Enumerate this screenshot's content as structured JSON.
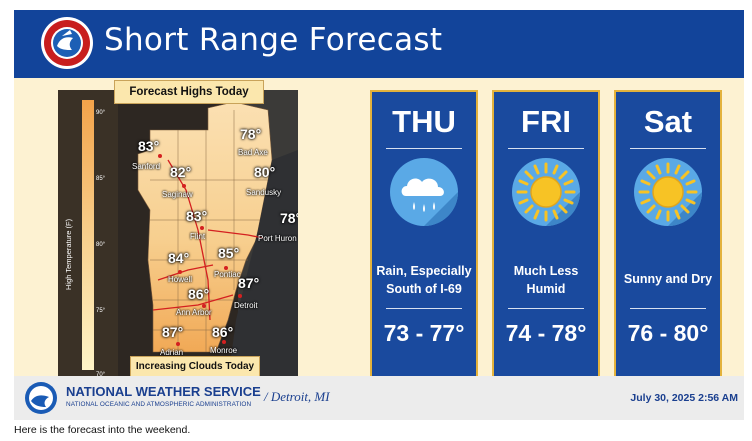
{
  "header": {
    "title": "Short Range Forecast"
  },
  "map": {
    "title": "Forecast Highs Today",
    "footer_note": "Increasing Clouds Today",
    "axis_label": "High Temperature (F)",
    "colorbar_ticks": [
      "90°",
      "85°",
      "80°",
      "75°",
      "70°"
    ],
    "locations": [
      {
        "name": "Sanford",
        "temp": "83°"
      },
      {
        "name": "Saginaw",
        "temp": "82°"
      },
      {
        "name": "Bad Axe",
        "temp": "78°"
      },
      {
        "name": "Sandusky",
        "temp": "80°"
      },
      {
        "name": "Flint",
        "temp": "83°"
      },
      {
        "name": "Port Huron",
        "temp": "78°"
      },
      {
        "name": "Howell",
        "temp": "84°"
      },
      {
        "name": "Pontiac",
        "temp": "85°"
      },
      {
        "name": "Detroit",
        "temp": "87°"
      },
      {
        "name": "Ann Arbor",
        "temp": "86°"
      },
      {
        "name": "Adrian",
        "temp": "87°"
      },
      {
        "name": "Monroe",
        "temp": "86°"
      }
    ],
    "highways": [
      "75",
      "69",
      "94",
      "96",
      "94"
    ]
  },
  "cards": [
    {
      "day": "THU",
      "icon": "rain-cloud-icon",
      "desc": [
        "Rain, Especially",
        "South of I-69"
      ],
      "temp": "73 - 77°"
    },
    {
      "day": "FRI",
      "icon": "sun-icon",
      "desc": [
        "Much Less",
        "Humid"
      ],
      "temp": "74 - 78°"
    },
    {
      "day": "Sat",
      "icon": "sun-icon",
      "desc": [
        "Sunny and Dry"
      ],
      "temp": "76 - 80°"
    }
  ],
  "footer": {
    "agency": "NATIONAL WEATHER SERVICE",
    "parent": "NATIONAL OCEANIC AND ATMOSPHERIC ADMINISTRATION",
    "office": "/ Detroit, MI",
    "date": "July 30, 2025 2:56 AM"
  },
  "caption": "Here is the forecast into the weekend.",
  "colors": {
    "header_blue": "#12449a",
    "card_blue": "#1a4a9e",
    "card_border": "#e3b23c",
    "panel": "#fdf2d2"
  }
}
